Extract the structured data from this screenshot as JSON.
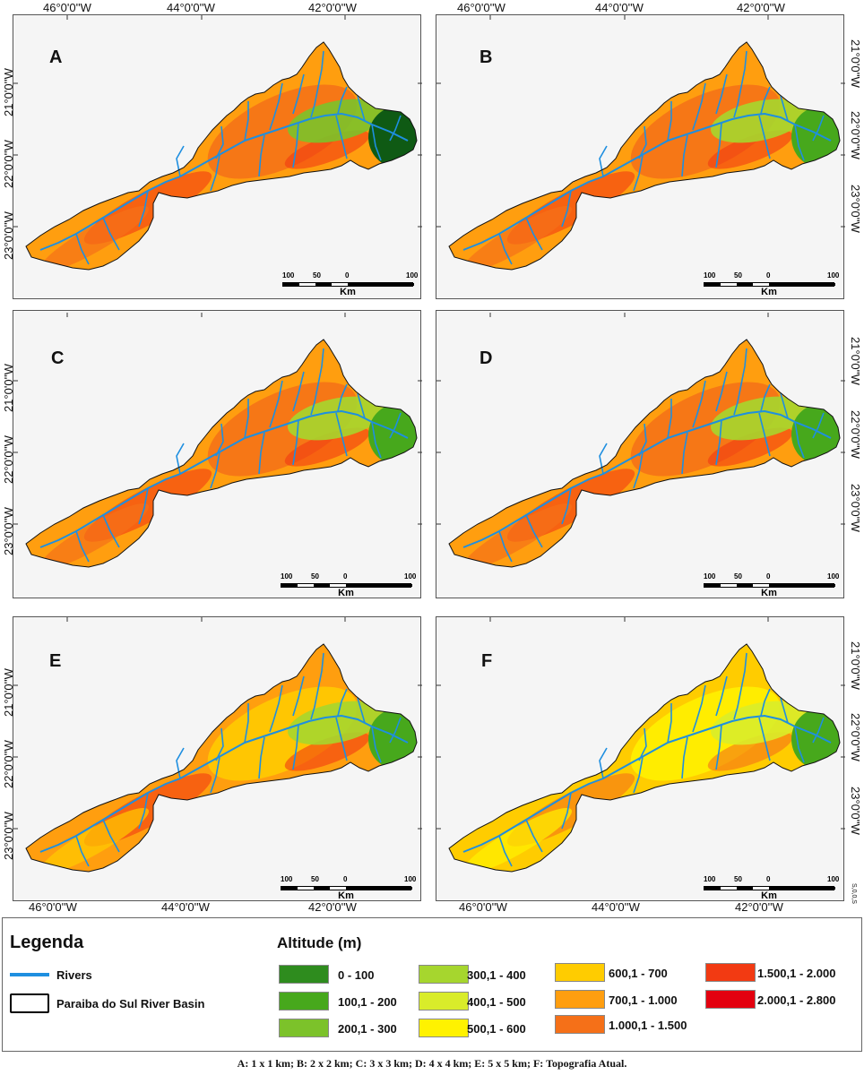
{
  "coordinates": {
    "longitudes": [
      "46°0'0''W",
      "44°0'0''W",
      "42°0'0''W"
    ],
    "latitudes": [
      "21°0'0''W",
      "22°0'0''W",
      "23°0'0''W"
    ],
    "corner_mark": "S,0,0,S"
  },
  "panels": [
    {
      "id": "A",
      "label": "A"
    },
    {
      "id": "B",
      "label": "B"
    },
    {
      "id": "C",
      "label": "C"
    },
    {
      "id": "D",
      "label": "D"
    },
    {
      "id": "E",
      "label": "E"
    },
    {
      "id": "F",
      "label": "F"
    }
  ],
  "scale_bar": {
    "ticks": [
      "100",
      "50",
      "0",
      "100"
    ],
    "unit": "Km"
  },
  "legend": {
    "title": "Legenda",
    "rivers_label": "Rivers",
    "basin_label": "Paraiba do Sul River Basin",
    "rivers_color": "#1e8fe0",
    "altitude_title": "Altitude (m)",
    "classes": [
      {
        "label": "0 - 100",
        "color": "#2e8c1e"
      },
      {
        "label": "100,1 - 200",
        "color": "#47a81c"
      },
      {
        "label": "200,1 - 300",
        "color": "#7cc22a"
      },
      {
        "label": "300,1 - 400",
        "color": "#a6d62e"
      },
      {
        "label": "400,1 - 500",
        "color": "#d9ec2a"
      },
      {
        "label": "500,1 - 600",
        "color": "#fff200"
      },
      {
        "label": "600,1 - 700",
        "color": "#ffcc00"
      },
      {
        "label": "700,1 - 1.000",
        "color": "#ff9e0f"
      },
      {
        "label": "1.000,1 - 1.500",
        "color": "#f57018"
      },
      {
        "label": "1.500,1 - 2.000",
        "color": "#f23a12"
      },
      {
        "label": "2.000,1 - 2.800",
        "color": "#e3000f"
      }
    ]
  },
  "caption": "A: 1 x 1 km; B: 2 x 2 km; C: 3 x 3 km; D: 4 x 4 km; E: 5 x 5 km; F: Topografia Atual."
}
